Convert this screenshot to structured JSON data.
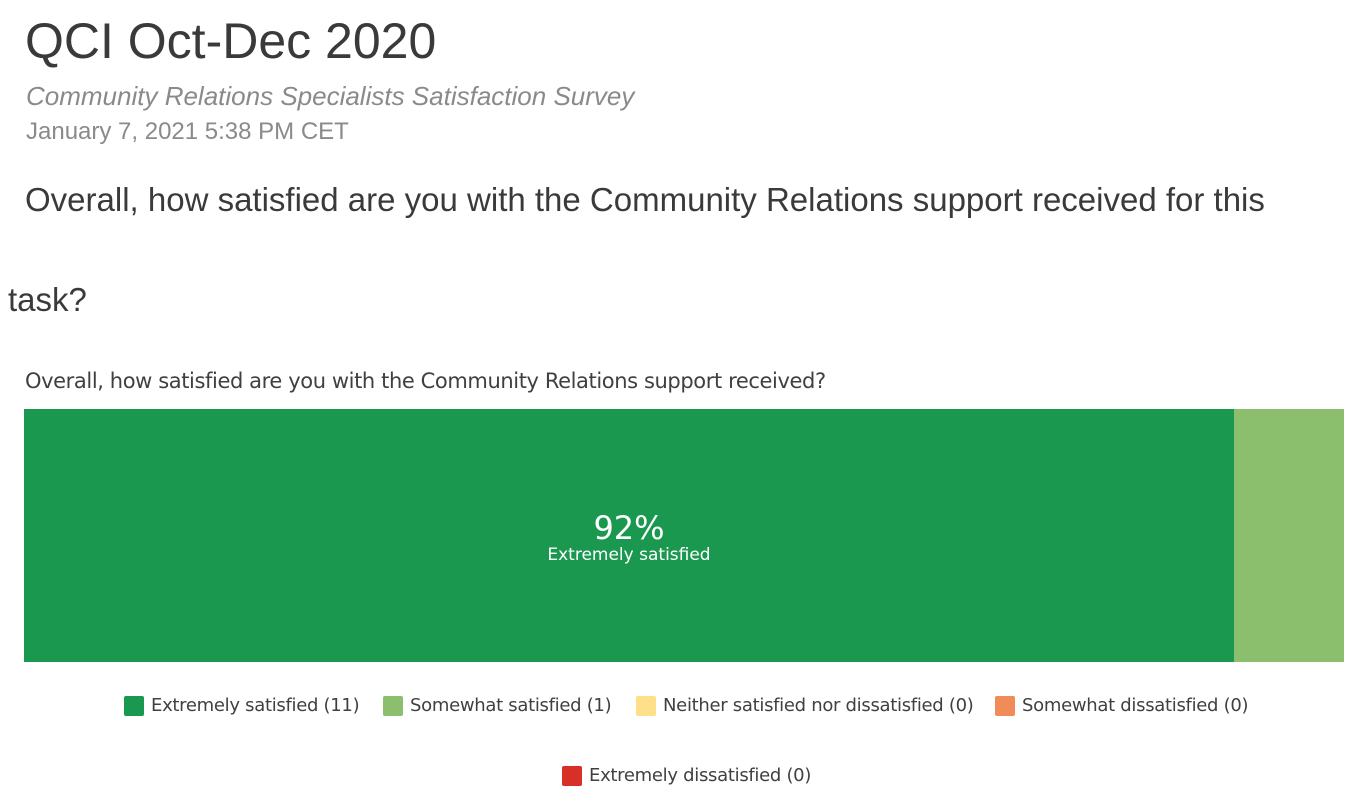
{
  "report": {
    "title": "QCI Oct-Dec 2020",
    "survey_name": "Community Relations Specialists Satisfaction Survey",
    "date": "January 7, 2021 5:38 PM CET"
  },
  "question": {
    "text_line1": "Overall, how satisfied are you with the Community Relations support received for this",
    "text_line2": "task?"
  },
  "chart_data": {
    "type": "bar",
    "orientation": "horizontal-stacked-100",
    "title": "Overall, how satisfied are you with the Community Relations support received?",
    "categories": [
      "Extremely satisfied",
      "Somewhat satisfied",
      "Neither satisfied nor dissatisfied",
      "Somewhat dissatisfied",
      "Extremely dissatisfied"
    ],
    "counts": [
      11,
      1,
      0,
      0,
      0
    ],
    "colors": [
      "#1a9850",
      "#8bbf6e",
      "#fee08b",
      "#f08c58",
      "#d73027"
    ],
    "legend_labels": [
      "Extremely satisfied (11)",
      "Somewhat satisfied (1)",
      "Neither satisfied nor dissatisfied (0)",
      "Somewhat dissatisfied (0)",
      "Extremely dissatisfied (0)"
    ],
    "data_label": {
      "value": "92%",
      "category": "Extremely satisfied"
    },
    "legend_position": "bottom",
    "xlim": [
      0,
      100
    ]
  }
}
